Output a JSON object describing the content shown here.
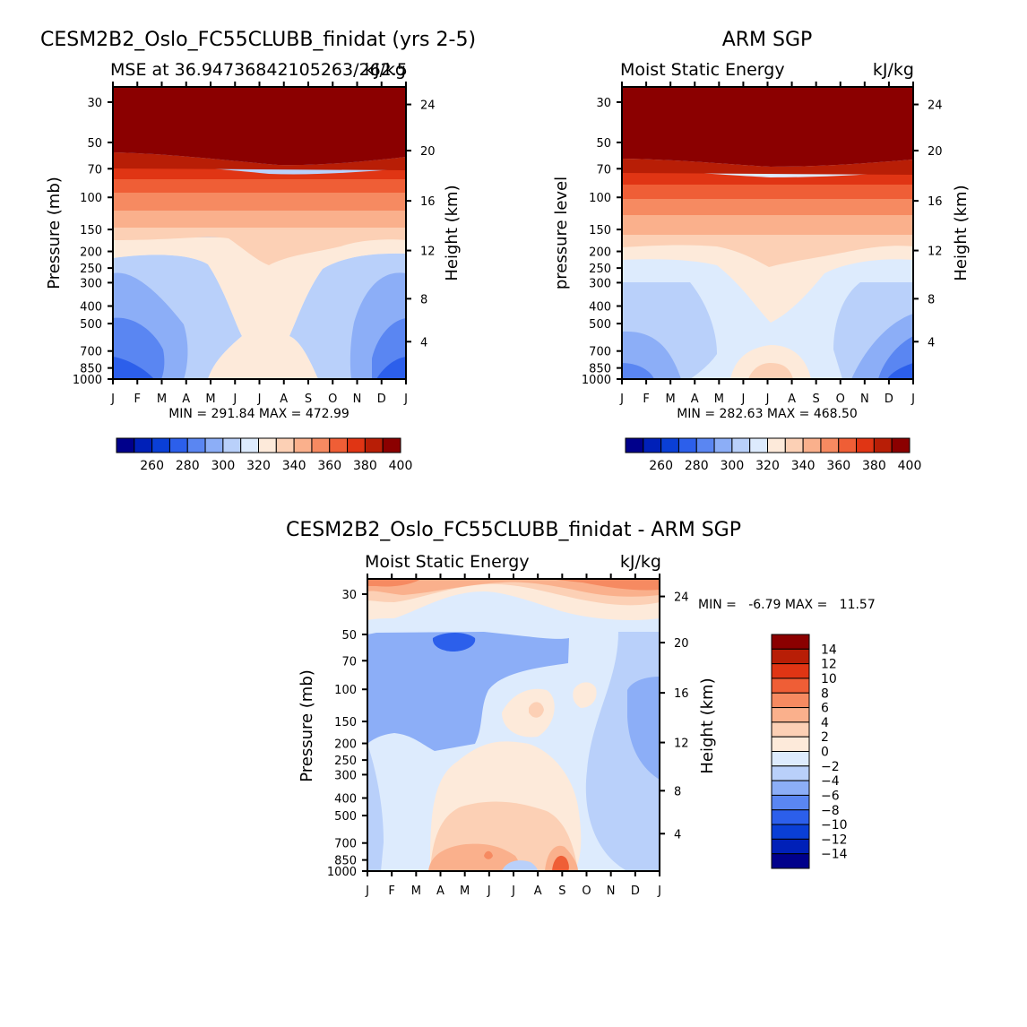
{
  "colors": {
    "colorbar_palette": [
      "#00008B",
      "#0020B8",
      "#0A3FD6",
      "#2C5FEB",
      "#5A86F2",
      "#8CAEF7",
      "#B9D0FA",
      "#DDEBFD",
      "#FDEADA",
      "#FCD0B5",
      "#FAB08C",
      "#F68A61",
      "#EF5E36",
      "#E03514",
      "#B81E06",
      "#8B0000"
    ],
    "diff_palette": [
      "#00008B",
      "#0020B8",
      "#0A3FD6",
      "#2C5FEB",
      "#5A86F2",
      "#8CAEF7",
      "#B9D0FA",
      "#DDEBFD",
      "#FDEADA",
      "#FCD0B5",
      "#FAB08C",
      "#F68A61",
      "#EF5E36",
      "#E03514",
      "#B81E06",
      "#8B0000"
    ]
  },
  "panels": [
    {
      "id": "model",
      "title": "CESM2B2_Oslo_FC55CLUBB_finidat (yrs 2-5)",
      "left_label": "MSE at 36.94736842105263/262.5",
      "right_label": "kJ/kg",
      "ylabel": "Pressure (mb)",
      "ylabel_right": "Height (km)",
      "stats": "MIN = 291.84 MAX = 472.99"
    },
    {
      "id": "obs",
      "title": "ARM SGP",
      "left_label": "Moist Static Energy",
      "right_label": "kJ/kg",
      "ylabel": "pressure level",
      "ylabel_right": "Height (km)",
      "stats": "MIN = 282.63 MAX = 468.50"
    },
    {
      "id": "diff",
      "title": "CESM2B2_Oslo_FC55CLUBB_finidat - ARM SGP",
      "left_label": "Moist Static Energy",
      "right_label": "kJ/kg",
      "ylabel": "Pressure (mb)",
      "ylabel_right": "Height (km)",
      "stats": "MIN =   -6.79 MAX =   11.57"
    }
  ],
  "chart_data": [
    {
      "type": "heatmap",
      "title": "CESM2B2_Oslo_FC55CLUBB_finidat (yrs 2-5)",
      "subtitle_left": "MSE at 36.94736842105263/262.5",
      "subtitle_right": "kJ/kg",
      "xlabel": "",
      "ylabel": "Pressure (mb)",
      "ylabel_right": "Height (km)",
      "x_ticks": [
        "J",
        "F",
        "M",
        "A",
        "M",
        "J",
        "J",
        "A",
        "S",
        "O",
        "N",
        "D",
        "J"
      ],
      "y_ticks": [
        "30",
        "50",
        "70",
        "100",
        "150",
        "200",
        "250",
        "300",
        "400",
        "500",
        "700",
        "850",
        "1000"
      ],
      "y_right_ticks": [
        "24",
        "20",
        "16",
        "12",
        "8",
        "4"
      ],
      "colorbar_labels": [
        "260",
        "280",
        "300",
        "320",
        "340",
        "360",
        "380",
        "400"
      ],
      "contour_levels": [
        250,
        260,
        270,
        280,
        290,
        300,
        310,
        320,
        330,
        340,
        350,
        360,
        370,
        380,
        390,
        400
      ],
      "min": 291.84,
      "max": 472.99
    },
    {
      "type": "heatmap",
      "title": "ARM SGP",
      "subtitle_left": "Moist Static Energy",
      "subtitle_right": "kJ/kg",
      "xlabel": "",
      "ylabel": "pressure level",
      "ylabel_right": "Height (km)",
      "x_ticks": [
        "J",
        "F",
        "M",
        "A",
        "M",
        "J",
        "J",
        "A",
        "S",
        "O",
        "N",
        "D",
        "J"
      ],
      "y_ticks": [
        "30",
        "50",
        "70",
        "100",
        "150",
        "200",
        "250",
        "300",
        "400",
        "500",
        "700",
        "850",
        "1000"
      ],
      "y_right_ticks": [
        "24",
        "20",
        "16",
        "12",
        "8",
        "4"
      ],
      "colorbar_labels": [
        "260",
        "280",
        "300",
        "320",
        "340",
        "360",
        "380",
        "400"
      ],
      "contour_levels": [
        250,
        260,
        270,
        280,
        290,
        300,
        310,
        320,
        330,
        340,
        350,
        360,
        370,
        380,
        390,
        400
      ],
      "min": 282.63,
      "max": 468.5
    },
    {
      "type": "heatmap",
      "title": "CESM2B2_Oslo_FC55CLUBB_finidat - ARM SGP",
      "subtitle_left": "Moist Static Energy",
      "subtitle_right": "kJ/kg",
      "xlabel": "",
      "ylabel": "Pressure (mb)",
      "ylabel_right": "Height (km)",
      "x_ticks": [
        "J",
        "F",
        "M",
        "A",
        "M",
        "J",
        "J",
        "A",
        "S",
        "O",
        "N",
        "D",
        "J"
      ],
      "y_ticks": [
        "30",
        "50",
        "70",
        "100",
        "150",
        "200",
        "250",
        "300",
        "400",
        "500",
        "700",
        "850",
        "1000"
      ],
      "y_right_ticks": [
        "24",
        "20",
        "16",
        "12",
        "8",
        "4"
      ],
      "colorbar_labels": [
        "14",
        "12",
        "10",
        "8",
        "6",
        "4",
        "2",
        "0",
        "-2",
        "-4",
        "-6",
        "-8",
        "-10",
        "-12",
        "-14"
      ],
      "min": -6.79,
      "max": 11.57
    }
  ]
}
